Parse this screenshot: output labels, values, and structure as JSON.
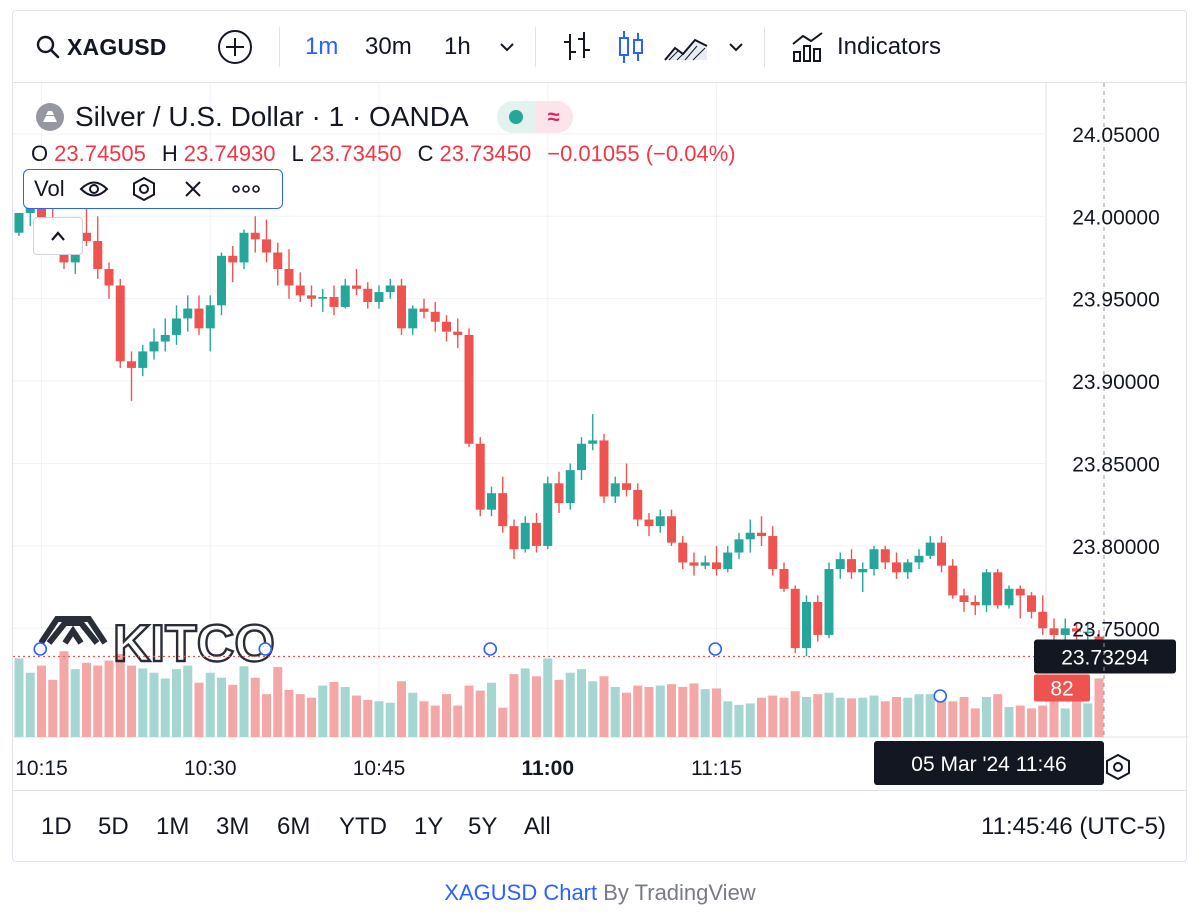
{
  "toolbar": {
    "symbol": "XAGUSD",
    "intervals": [
      "1m",
      "30m",
      "1h"
    ],
    "indicators_label": "Indicators"
  },
  "legend": {
    "title": "Silver / U.S. Dollar · 1 · OANDA",
    "status_text": "≈",
    "o_label": "O",
    "o_value": "23.74505",
    "h_label": "H",
    "h_value": "23.74930",
    "l_label": "L",
    "l_value": "23.73450",
    "c_label": "C",
    "c_value": "23.73450",
    "change": "−0.01055 (−0.04%)",
    "volume_label": "Vol",
    "volume_value": "82"
  },
  "crosshair": {
    "date_label": "05 Mar '24   11:46"
  },
  "ranges": [
    "1D",
    "5D",
    "1M",
    "3M",
    "6M",
    "YTD",
    "1Y",
    "5Y",
    "All"
  ],
  "clock": "11:45:46 (UTC-5)",
  "footer": {
    "link_text": "XAGUSD Chart",
    "by_text": " By TradingView"
  },
  "watermark": "KITCO",
  "colors": {
    "up": "#26a69a",
    "down": "#ef5350",
    "up_vol": "#a6d6d1",
    "down_vol": "#f3a8a7",
    "accent": "#2962ff"
  },
  "chart_data": {
    "type": "candlestick",
    "symbol": "XAGUSD",
    "interval": "1m",
    "date": "05 Mar '24",
    "x_start": "10:13",
    "x_end": "11:46",
    "x_ticks": [
      "10:15",
      "10:30",
      "10:45",
      "11:00",
      "11:15"
    ],
    "y_ticks": [
      24.05,
      24.0,
      23.95,
      23.9,
      23.85,
      23.8,
      23.75
    ],
    "ylim": [
      23.695,
      24.076
    ],
    "last_price": 23.73294,
    "last_volume": 82,
    "candles": [
      [
        23.99,
        24.002,
        23.988,
        24.002,
        110
      ],
      [
        24.002,
        24.01,
        23.994,
        24.008,
        90
      ],
      [
        24.008,
        24.012,
        23.99,
        23.998,
        100
      ],
      [
        23.998,
        24.005,
        23.985,
        23.99,
        80
      ],
      [
        23.99,
        23.998,
        23.968,
        23.972,
        120
      ],
      [
        23.972,
        23.995,
        23.965,
        23.99,
        95
      ],
      [
        23.99,
        24.006,
        23.982,
        23.985,
        104
      ],
      [
        23.985,
        24.0,
        23.962,
        23.968,
        100
      ],
      [
        23.968,
        23.972,
        23.95,
        23.958,
        107
      ],
      [
        23.958,
        23.962,
        23.908,
        23.912,
        116
      ],
      [
        23.912,
        23.918,
        23.888,
        23.908,
        100
      ],
      [
        23.908,
        23.922,
        23.903,
        23.918,
        96
      ],
      [
        23.918,
        23.932,
        23.913,
        23.924,
        90
      ],
      [
        23.924,
        23.938,
        23.918,
        23.928,
        82
      ],
      [
        23.928,
        23.946,
        23.922,
        23.938,
        95
      ],
      [
        23.938,
        23.952,
        23.93,
        23.944,
        100
      ],
      [
        23.944,
        23.952,
        23.928,
        23.932,
        76
      ],
      [
        23.932,
        23.952,
        23.918,
        23.946,
        90
      ],
      [
        23.946,
        23.978,
        23.94,
        23.976,
        83
      ],
      [
        23.976,
        23.982,
        23.96,
        23.972,
        73
      ],
      [
        23.972,
        23.992,
        23.968,
        23.99,
        99
      ],
      [
        23.99,
        24.0,
        23.978,
        23.986,
        83
      ],
      [
        23.986,
        23.998,
        23.972,
        23.978,
        60
      ],
      [
        23.978,
        23.984,
        23.958,
        23.968,
        98
      ],
      [
        23.968,
        23.98,
        23.95,
        23.958,
        66
      ],
      [
        23.958,
        23.966,
        23.948,
        23.952,
        60
      ],
      [
        23.952,
        23.958,
        23.945,
        23.95,
        55
      ],
      [
        23.95,
        23.956,
        23.942,
        23.951,
        72
      ],
      [
        23.951,
        23.958,
        23.94,
        23.945,
        77
      ],
      [
        23.945,
        23.962,
        23.944,
        23.958,
        70
      ],
      [
        23.958,
        23.968,
        23.952,
        23.956,
        58
      ],
      [
        23.956,
        23.96,
        23.944,
        23.948,
        52
      ],
      [
        23.948,
        23.958,
        23.944,
        23.954,
        50
      ],
      [
        23.954,
        23.962,
        23.95,
        23.958,
        48
      ],
      [
        23.958,
        23.962,
        23.928,
        23.932,
        78
      ],
      [
        23.932,
        23.946,
        23.928,
        23.944,
        62
      ],
      [
        23.944,
        23.95,
        23.938,
        23.942,
        50
      ],
      [
        23.942,
        23.948,
        23.93,
        23.936,
        44
      ],
      [
        23.936,
        23.94,
        23.924,
        23.93,
        60
      ],
      [
        23.93,
        23.938,
        23.92,
        23.928,
        44
      ],
      [
        23.928,
        23.932,
        23.86,
        23.862,
        72
      ],
      [
        23.862,
        23.866,
        23.818,
        23.822,
        65
      ],
      [
        23.822,
        23.836,
        23.818,
        23.832,
        76
      ],
      [
        23.832,
        23.842,
        23.808,
        23.812,
        41
      ],
      [
        23.812,
        23.816,
        23.792,
        23.798,
        88
      ],
      [
        23.798,
        23.818,
        23.796,
        23.814,
        96
      ],
      [
        23.814,
        23.82,
        23.796,
        23.8,
        85
      ],
      [
        23.8,
        23.842,
        23.798,
        23.838,
        110
      ],
      [
        23.838,
        23.845,
        23.82,
        23.826,
        80
      ],
      [
        23.826,
        23.85,
        23.822,
        23.846,
        90
      ],
      [
        23.846,
        23.866,
        23.84,
        23.862,
        95
      ],
      [
        23.862,
        23.88,
        23.858,
        23.864,
        78
      ],
      [
        23.864,
        23.868,
        23.826,
        23.83,
        85
      ],
      [
        23.83,
        23.842,
        23.826,
        23.838,
        70
      ],
      [
        23.838,
        23.85,
        23.83,
        23.834,
        62
      ],
      [
        23.834,
        23.838,
        23.812,
        23.816,
        72
      ],
      [
        23.816,
        23.82,
        23.806,
        23.812,
        70
      ],
      [
        23.812,
        23.822,
        23.808,
        23.818,
        72
      ],
      [
        23.818,
        23.822,
        23.8,
        23.802,
        74
      ],
      [
        23.802,
        23.806,
        23.786,
        23.79,
        70
      ],
      [
        23.79,
        23.796,
        23.782,
        23.788,
        75
      ],
      [
        23.788,
        23.794,
        23.786,
        23.79,
        67
      ],
      [
        23.79,
        23.8,
        23.782,
        23.786,
        68
      ],
      [
        23.786,
        23.8,
        23.784,
        23.796,
        50
      ],
      [
        23.796,
        23.808,
        23.792,
        23.804,
        45
      ],
      [
        23.804,
        23.816,
        23.796,
        23.808,
        47
      ],
      [
        23.808,
        23.818,
        23.8,
        23.806,
        55
      ],
      [
        23.806,
        23.812,
        23.782,
        23.786,
        58
      ],
      [
        23.786,
        23.79,
        23.772,
        23.774,
        55
      ],
      [
        23.774,
        23.776,
        23.735,
        23.738,
        64
      ],
      [
        23.738,
        23.77,
        23.733,
        23.766,
        56
      ],
      [
        23.766,
        23.77,
        23.742,
        23.746,
        60
      ],
      [
        23.746,
        23.79,
        23.744,
        23.786,
        62
      ],
      [
        23.786,
        23.796,
        23.78,
        23.792,
        55
      ],
      [
        23.792,
        23.798,
        23.78,
        23.784,
        54
      ],
      [
        23.784,
        23.79,
        23.772,
        23.786,
        55
      ],
      [
        23.786,
        23.8,
        23.782,
        23.798,
        58
      ],
      [
        23.798,
        23.8,
        23.786,
        23.79,
        50
      ],
      [
        23.79,
        23.796,
        23.78,
        23.784,
        56
      ],
      [
        23.784,
        23.792,
        23.78,
        23.79,
        55
      ],
      [
        23.79,
        23.798,
        23.786,
        23.794,
        60
      ],
      [
        23.794,
        23.806,
        23.792,
        23.802,
        60
      ],
      [
        23.802,
        23.806,
        23.784,
        23.788,
        56
      ],
      [
        23.788,
        23.792,
        23.768,
        23.77,
        50
      ],
      [
        23.77,
        23.774,
        23.76,
        23.766,
        56
      ],
      [
        23.766,
        23.77,
        23.758,
        23.764,
        40
      ],
      [
        23.764,
        23.786,
        23.76,
        23.784,
        56
      ],
      [
        23.784,
        23.786,
        23.762,
        23.764,
        60
      ],
      [
        23.764,
        23.776,
        23.762,
        23.774,
        42
      ],
      [
        23.774,
        23.776,
        23.756,
        23.77,
        44
      ],
      [
        23.77,
        23.772,
        23.756,
        23.76,
        40
      ],
      [
        23.76,
        23.77,
        23.746,
        23.75,
        44
      ],
      [
        23.75,
        23.756,
        23.74,
        23.746,
        50
      ],
      [
        23.746,
        23.756,
        23.742,
        23.75,
        40
      ],
      [
        23.75,
        23.754,
        23.738,
        23.748,
        54
      ],
      [
        23.748,
        23.754,
        23.738,
        23.748,
        47
      ],
      [
        23.745,
        23.749,
        23.735,
        23.735,
        82
      ]
    ]
  }
}
